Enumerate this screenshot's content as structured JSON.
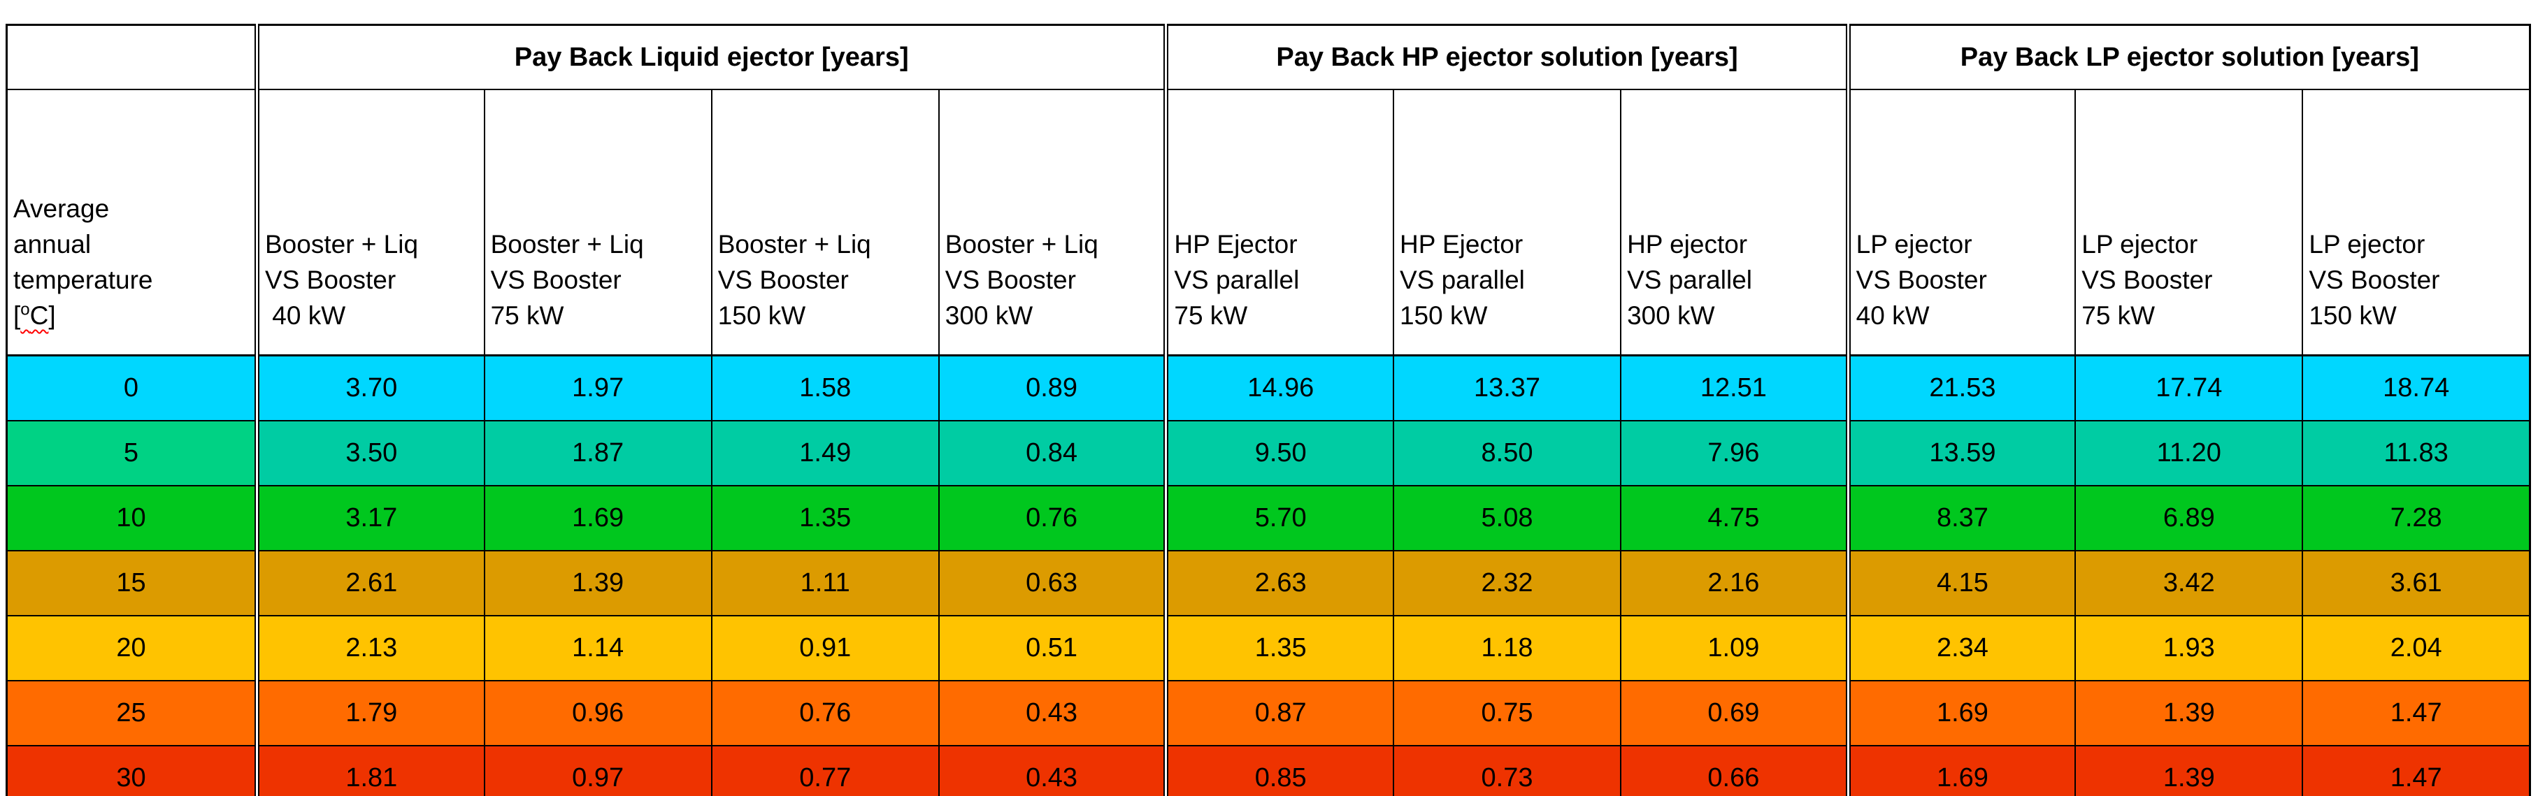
{
  "chart_data": {
    "type": "table",
    "title": "Pay back comparison of ejector solutions vs average annual temperature",
    "groups": [
      {
        "label": "Pay Back Liquid ejector  [years]",
        "span": 4
      },
      {
        "label": "Pay Back HP ejector solution [years]",
        "span": 3
      },
      {
        "label": "Pay Back LP ejector solution [years]",
        "span": 3
      }
    ],
    "row_header": {
      "lines": [
        "Average",
        "annual",
        "temperature"
      ],
      "unit_open": "[",
      "unit_sup": "o",
      "unit_c": "C",
      "unit_close": "]"
    },
    "column_headers": [
      [
        "Booster + Liq",
        "VS Booster",
        " 40 kW"
      ],
      [
        "Booster + Liq",
        "VS Booster",
        "75 kW"
      ],
      [
        "Booster + Liq",
        "VS Booster",
        "150 kW"
      ],
      [
        "Booster + Liq",
        "VS Booster",
        "300 kW"
      ],
      [
        "HP Ejector",
        "VS parallel",
        "75 kW"
      ],
      [
        "HP Ejector",
        "VS parallel",
        "150 kW"
      ],
      [
        "HP ejector",
        "VS parallel",
        "300 kW"
      ],
      [
        "LP ejector",
        "VS Booster",
        "40 kW"
      ],
      [
        "LP ejector",
        "VS Booster",
        "75 kW"
      ],
      [
        "LP ejector",
        "VS Booster",
        "150 kW"
      ]
    ],
    "x_axis_label": "Average annual temperature [oC]",
    "unit": "years",
    "rows": [
      {
        "temperature": "0",
        "label_color": "#00D7FF",
        "row_color": "#00D7FF",
        "values": [
          "3.70",
          "1.97",
          "1.58",
          "0.89",
          "14.96",
          "13.37",
          "12.51",
          "21.53",
          "17.74",
          "18.74"
        ]
      },
      {
        "temperature": "5",
        "label_color": "#00D284",
        "row_color": "#00CCA3",
        "values": [
          "3.50",
          "1.87",
          "1.49",
          "0.84",
          "9.50",
          "8.50",
          "7.96",
          "13.59",
          "11.20",
          "11.83"
        ]
      },
      {
        "temperature": "10",
        "label_color": "#00C71E",
        "row_color": "#00C71E",
        "values": [
          "3.17",
          "1.69",
          "1.35",
          "0.76",
          "5.70",
          "5.08",
          "4.75",
          "8.37",
          "6.89",
          "7.28"
        ]
      },
      {
        "temperature": "15",
        "label_color": "#DC9B00",
        "row_color": "#DC9B00",
        "values": [
          "2.61",
          "1.39",
          "1.11",
          "0.63",
          "2.63",
          "2.32",
          "2.16",
          "4.15",
          "3.42",
          "3.61"
        ]
      },
      {
        "temperature": "20",
        "label_color": "#FFC300",
        "row_color": "#FFC300",
        "values": [
          "2.13",
          "1.14",
          "0.91",
          "0.51",
          "1.35",
          "1.18",
          "1.09",
          "2.34",
          "1.93",
          "2.04"
        ]
      },
      {
        "temperature": "25",
        "label_color": "#FF6B00",
        "row_color": "#FF6B00",
        "values": [
          "1.79",
          "0.96",
          "0.76",
          "0.43",
          "0.87",
          "0.75",
          "0.69",
          "1.69",
          "1.39",
          "1.47"
        ]
      },
      {
        "temperature": "30",
        "label_color": "#EE3300",
        "row_color": "#EE3300",
        "values": [
          "1.81",
          "0.97",
          "0.77",
          "0.43",
          "0.85",
          "0.73",
          "0.66",
          "1.69",
          "1.39",
          "1.47"
        ]
      }
    ],
    "colors": {
      "border": "#000000",
      "spellcheck_underline": "#FF0000",
      "header_background": "#FFFFFF"
    }
  }
}
